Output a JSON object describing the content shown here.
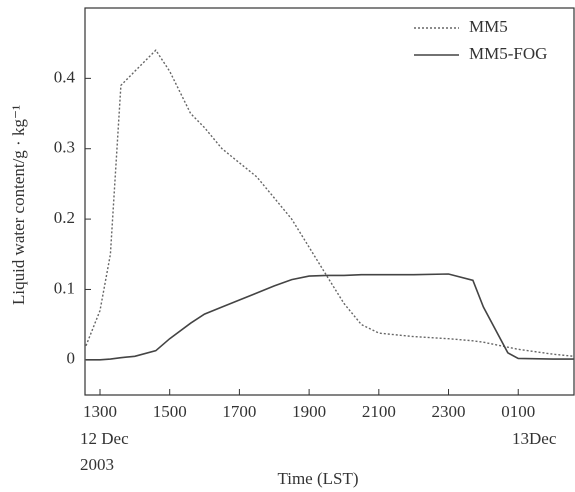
{
  "chart_data": {
    "type": "line",
    "x_label": "Time (LST)",
    "y_label": "Liquid water content/g · kg⁻¹",
    "annotations": [
      "12 Dec",
      "2003",
      "13Dec"
    ],
    "x": [
      12.6,
      13,
      13.3,
      13.6,
      14,
      14.6,
      15,
      15.6,
      16,
      16.5,
      17,
      17.5,
      18,
      18.5,
      19,
      19.5,
      20,
      20.5,
      21,
      22,
      23,
      23.7,
      24,
      24.7,
      25,
      26,
      26.6
    ],
    "series": [
      {
        "name": "MM5",
        "color": "#666666",
        "linestyle": "dotted",
        "values": [
          0.02,
          0.07,
          0.15,
          0.39,
          0.41,
          0.44,
          0.41,
          0.35,
          0.33,
          0.3,
          0.28,
          0.26,
          0.23,
          0.2,
          0.16,
          0.12,
          0.08,
          0.05,
          0.038,
          0.033,
          0.03,
          0.027,
          0.025,
          0.018,
          0.015,
          0.008,
          0.005
        ]
      },
      {
        "name": "MM5-FOG",
        "color": "#444444",
        "linestyle": "solid",
        "values": [
          0,
          0,
          0.001,
          0.003,
          0.005,
          0.013,
          0.03,
          0.052,
          0.065,
          0.075,
          0.085,
          0.095,
          0.105,
          0.114,
          0.119,
          0.12,
          0.12,
          0.121,
          0.121,
          0.121,
          0.122,
          0.113,
          0.075,
          0.01,
          0.002,
          0.001,
          0.001
        ]
      }
    ],
    "xlim": [
      12.57,
      26.6
    ],
    "xticks": [
      {
        "value": 13,
        "label": "1300"
      },
      {
        "value": 15,
        "label": "1500"
      },
      {
        "value": 17,
        "label": "1700"
      },
      {
        "value": 19,
        "label": "1900"
      },
      {
        "value": 21,
        "label": "2100"
      },
      {
        "value": 23,
        "label": "2300"
      },
      {
        "value": 25,
        "label": "0100"
      }
    ],
    "ylim": [
      -0.05,
      0.5
    ],
    "yticks": [
      0,
      0.1,
      0.2,
      0.3,
      0.4
    ],
    "legend": "upper right",
    "grid": false
  }
}
